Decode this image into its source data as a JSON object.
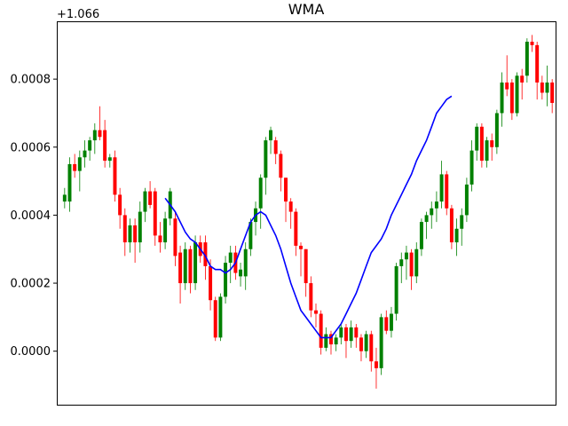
{
  "chart_data": {
    "type": "candlestick",
    "title": "WMA",
    "xlabel": "",
    "ylabel": "",
    "y_offset_label": "+1.066",
    "y_offset": 1.066,
    "ylim": [
      -0.00016,
      0.00097
    ],
    "yticks": [
      0.0,
      0.0002,
      0.0004,
      0.0006,
      0.0008
    ],
    "ytick_labels": [
      "0.0000",
      "0.0002",
      "0.0004",
      "0.0006",
      "0.0008"
    ],
    "xticks_visible": false,
    "grid": false,
    "colors": {
      "up": "#008000",
      "down": "#ff0000",
      "wick": "#808080",
      "wma": "#0000ff"
    },
    "candles": [
      [
        0.00044,
        0.00046,
        0.00042,
        0.00048
      ],
      [
        0.00044,
        0.00055,
        0.00041,
        0.00057
      ],
      [
        0.00055,
        0.00053,
        0.00051,
        0.00058
      ],
      [
        0.00053,
        0.00057,
        0.00047,
        0.00059
      ],
      [
        0.00057,
        0.00059,
        0.00054,
        0.00062
      ],
      [
        0.00059,
        0.00062,
        0.00056,
        0.00063
      ],
      [
        0.00062,
        0.00065,
        0.00058,
        0.00067
      ],
      [
        0.00065,
        0.00063,
        0.00062,
        0.00072
      ],
      [
        0.00065,
        0.00056,
        0.00054,
        0.00068
      ],
      [
        0.00056,
        0.00057,
        0.00054,
        0.00058
      ],
      [
        0.00057,
        0.00046,
        0.00044,
        0.00059
      ],
      [
        0.00046,
        0.0004,
        0.00036,
        0.00048
      ],
      [
        0.0004,
        0.00032,
        0.00028,
        0.00042
      ],
      [
        0.00032,
        0.00037,
        0.00029,
        0.00039
      ],
      [
        0.00037,
        0.00032,
        0.00026,
        0.00039
      ],
      [
        0.00032,
        0.00041,
        0.00029,
        0.00044
      ],
      [
        0.00041,
        0.00047,
        0.00038,
        0.00048
      ],
      [
        0.00047,
        0.00043,
        0.00042,
        0.0005
      ],
      [
        0.00047,
        0.00034,
        0.00031,
        0.00048
      ],
      [
        0.00034,
        0.00032,
        0.00029,
        0.00038
      ],
      [
        0.00032,
        0.00039,
        0.0003,
        0.00041
      ],
      [
        0.00039,
        0.00047,
        0.00037,
        0.00048
      ],
      [
        0.00039,
        0.00028,
        0.00025,
        0.00041
      ],
      [
        0.00029,
        0.0002,
        0.00014,
        0.00031
      ],
      [
        0.0002,
        0.0003,
        0.00018,
        0.00032
      ],
      [
        0.0003,
        0.0002,
        0.00017,
        0.00031
      ],
      [
        0.0002,
        0.00032,
        0.00018,
        0.00034
      ],
      [
        0.00032,
        0.00028,
        0.00026,
        0.00034
      ],
      [
        0.00032,
        0.00025,
        0.00021,
        0.00034
      ],
      [
        0.00025,
        0.00015,
        0.00012,
        0.00027
      ],
      [
        0.00015,
        4e-05,
        3e-05,
        0.00016
      ],
      [
        4e-05,
        0.00016,
        3e-05,
        0.00017
      ],
      [
        0.00016,
        0.00026,
        0.00014,
        0.00028
      ],
      [
        0.00026,
        0.00029,
        0.0002,
        0.00031
      ],
      [
        0.00029,
        0.00023,
        0.00021,
        0.00031
      ],
      [
        0.00022,
        0.00024,
        0.00019,
        0.00026
      ],
      [
        0.00022,
        0.0003,
        0.00018,
        0.00032
      ],
      [
        0.0003,
        0.00038,
        0.00028,
        0.00039
      ],
      [
        0.00038,
        0.00042,
        0.00034,
        0.00044
      ],
      [
        0.00042,
        0.00051,
        0.00036,
        0.00052
      ],
      [
        0.00051,
        0.00062,
        0.00046,
        0.00063
      ],
      [
        0.00062,
        0.00065,
        0.00058,
        0.00066
      ],
      [
        0.00062,
        0.00058,
        0.00055,
        0.00063
      ],
      [
        0.00058,
        0.00051,
        0.00047,
        0.00059
      ],
      [
        0.00051,
        0.00044,
        0.00038,
        0.00051
      ],
      [
        0.00044,
        0.00041,
        0.00036,
        0.00045
      ],
      [
        0.00041,
        0.00031,
        0.00028,
        0.00042
      ],
      [
        0.00031,
        0.0003,
        0.00022,
        0.00032
      ],
      [
        0.0003,
        0.0002,
        0.00016,
        0.0003
      ],
      [
        0.0002,
        0.00012,
        0.0001,
        0.00022
      ],
      [
        0.00012,
        0.00011,
        7e-05,
        0.00014
      ],
      [
        0.00011,
        1e-05,
        -1e-05,
        0.00012
      ],
      [
        1e-05,
        5e-05,
        0.0,
        7e-05
      ],
      [
        5e-05,
        2e-05,
        -1e-05,
        6e-05
      ],
      [
        2e-05,
        4e-05,
        0.0,
        5e-05
      ],
      [
        4e-05,
        7e-05,
        2e-05,
        8e-05
      ],
      [
        7e-05,
        3e-05,
        -2e-05,
        8e-05
      ],
      [
        3e-05,
        7e-05,
        1e-05,
        9e-05
      ],
      [
        7e-05,
        4e-05,
        1e-05,
        8e-05
      ],
      [
        4e-05,
        0.0,
        -3e-05,
        5e-05
      ],
      [
        0.0,
        5e-05,
        -2e-05,
        6e-05
      ],
      [
        5e-05,
        -3e-05,
        -6e-05,
        6e-05
      ],
      [
        -3e-05,
        -5e-05,
        -0.00011,
        1e-05
      ],
      [
        -5e-05,
        0.0001,
        -7e-05,
        0.00011
      ],
      [
        0.0001,
        6e-05,
        5e-05,
        0.00012
      ],
      [
        6e-05,
        0.00011,
        4e-05,
        0.00013
      ],
      [
        0.00011,
        0.00025,
        9e-05,
        0.00026
      ],
      [
        0.00025,
        0.00027,
        0.0002,
        0.00029
      ],
      [
        0.00027,
        0.00029,
        0.00021,
        0.00031
      ],
      [
        0.00029,
        0.00022,
        0.00018,
        0.0003
      ],
      [
        0.00022,
        0.0003,
        0.0002,
        0.00032
      ],
      [
        0.0003,
        0.00038,
        0.00028,
        0.00039
      ],
      [
        0.00038,
        0.0004,
        0.00033,
        0.00041
      ],
      [
        0.0004,
        0.00042,
        0.00036,
        0.00044
      ],
      [
        0.00042,
        0.00044,
        0.00038,
        0.00047
      ],
      [
        0.00044,
        0.00052,
        0.00042,
        0.00056
      ],
      [
        0.00052,
        0.00042,
        0.0004,
        0.00053
      ],
      [
        0.00042,
        0.00032,
        0.0003,
        0.00043
      ],
      [
        0.00032,
        0.00036,
        0.00028,
        0.00039
      ],
      [
        0.00036,
        0.0004,
        0.00031,
        0.00042
      ],
      [
        0.0004,
        0.00049,
        0.00038,
        0.00051
      ],
      [
        0.00049,
        0.00059,
        0.00047,
        0.00062
      ],
      [
        0.00059,
        0.00066,
        0.00056,
        0.00067
      ],
      [
        0.00066,
        0.00056,
        0.00054,
        0.00067
      ],
      [
        0.00056,
        0.00062,
        0.00054,
        0.00063
      ],
      [
        0.00062,
        0.0006,
        0.00056,
        0.00064
      ],
      [
        0.0006,
        0.0007,
        0.00058,
        0.00071
      ],
      [
        0.0007,
        0.00079,
        0.00066,
        0.00082
      ],
      [
        0.00079,
        0.00077,
        0.00075,
        0.00087
      ],
      [
        0.00079,
        0.0007,
        0.00068,
        0.0008
      ],
      [
        0.0007,
        0.00081,
        0.00069,
        0.00082
      ],
      [
        0.00081,
        0.00079,
        0.00074,
        0.00083
      ],
      [
        0.00081,
        0.00091,
        0.00079,
        0.00092
      ],
      [
        0.00091,
        0.0009,
        0.00088,
        0.00093
      ],
      [
        0.0009,
        0.00079,
        0.00074,
        0.00091
      ],
      [
        0.00079,
        0.00076,
        0.00074,
        0.00081
      ],
      [
        0.00076,
        0.00079,
        0.00072,
        0.00084
      ],
      [
        0.00079,
        0.00073,
        0.0007,
        0.0008
      ]
    ],
    "wma": {
      "start_index": 20,
      "values": [
        0.00045,
        0.00043,
        0.00041,
        0.00038,
        0.00035,
        0.00033,
        0.00032,
        0.0003,
        0.00028,
        0.00025,
        0.00024,
        0.00024,
        0.00023,
        0.00024,
        0.00026,
        0.0003,
        0.00034,
        0.00038,
        0.0004,
        0.00041,
        0.0004,
        0.00037,
        0.00034,
        0.0003,
        0.00025,
        0.0002,
        0.00016,
        0.00012,
        0.0001,
        8e-05,
        6e-05,
        4e-05,
        4e-05,
        4e-05,
        6e-05,
        8e-05,
        0.00011,
        0.00014,
        0.00017,
        0.00021,
        0.00025,
        0.00029,
        0.00031,
        0.00033,
        0.00036,
        0.0004,
        0.00043,
        0.00046,
        0.00049,
        0.00052,
        0.00056,
        0.00059,
        0.00062,
        0.00066,
        0.0007,
        0.00072,
        0.00074,
        0.00075
      ]
    }
  }
}
